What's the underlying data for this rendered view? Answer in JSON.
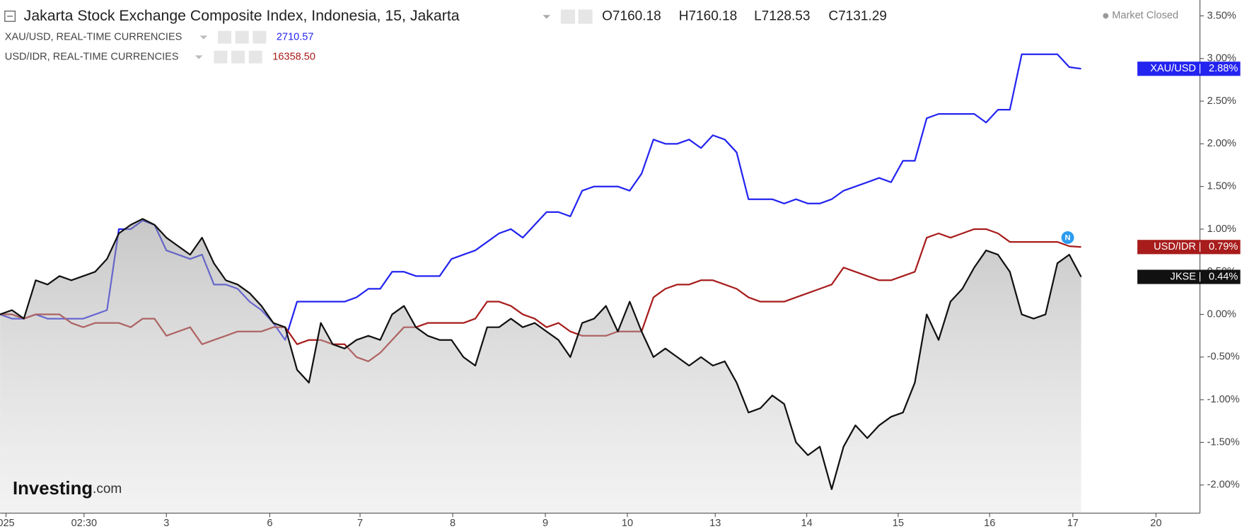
{
  "header": {
    "title": "Jakarta Stock Exchange Composite Index, Indonesia, 15, Jakarta",
    "ohlc": [
      {
        "key": "O",
        "value": "7160.18"
      },
      {
        "key": "H",
        "value": "7160.18"
      },
      {
        "key": "L",
        "value": "7128.53"
      },
      {
        "key": "C",
        "value": "7131.29"
      }
    ],
    "status": "Market Closed"
  },
  "chart_data": {
    "type": "line",
    "x": [
      0,
      1,
      2,
      3,
      4,
      5,
      6,
      7,
      8,
      9,
      10,
      11,
      12,
      13,
      14,
      15,
      16,
      17,
      18,
      19,
      20,
      21,
      22,
      23,
      24,
      25,
      26,
      27,
      28,
      29,
      30,
      31,
      32,
      33,
      34,
      35,
      36,
      37,
      38,
      39,
      40,
      41,
      42,
      43,
      44,
      45,
      46,
      47,
      48,
      49,
      50,
      51,
      52,
      53,
      54,
      55,
      56,
      57,
      58,
      59,
      60,
      61,
      62,
      63,
      64,
      65,
      66,
      67,
      68,
      69,
      70,
      71,
      72,
      73,
      74,
      75,
      76,
      77,
      78,
      79,
      80,
      81,
      82,
      83,
      84,
      85,
      86,
      87,
      88,
      89,
      90,
      91
    ],
    "xlim": [
      0,
      101
    ],
    "xticks": [
      {
        "value": 0.5,
        "label": "025"
      },
      {
        "value": 7.07,
        "label": "02:30"
      },
      {
        "value": 14,
        "label": "3"
      },
      {
        "value": 22.7,
        "label": "6"
      },
      {
        "value": 30.3,
        "label": "7"
      },
      {
        "value": 38.1,
        "label": "8"
      },
      {
        "value": 45.9,
        "label": "9"
      },
      {
        "value": 52.8,
        "label": "10"
      },
      {
        "value": 60.2,
        "label": "13"
      },
      {
        "value": 67.9,
        "label": "14"
      },
      {
        "value": 75.6,
        "label": "15"
      },
      {
        "value": 83.3,
        "label": "16"
      },
      {
        "value": 90.3,
        "label": "17"
      },
      {
        "value": 97.3,
        "label": "20"
      }
    ],
    "ylim": [
      -2.33,
      3.686
    ],
    "yticks": [
      {
        "value": -2.0,
        "label": "-2.00%"
      },
      {
        "value": -1.5,
        "label": "-1.50%"
      },
      {
        "value": -1.0,
        "label": "-1.00%"
      },
      {
        "value": -0.5,
        "label": "-0.50%"
      },
      {
        "value": 0.0,
        "label": "0.00%"
      },
      {
        "value": 0.5,
        "label": "0.50%"
      },
      {
        "value": 1.0,
        "label": "1.00%"
      },
      {
        "value": 1.5,
        "label": "1.50%"
      },
      {
        "value": 2.0,
        "label": "2.00%"
      },
      {
        "value": 2.5,
        "label": "2.50%"
      },
      {
        "value": 3.0,
        "label": "3.00%"
      },
      {
        "value": 3.5,
        "label": "3.50%"
      }
    ],
    "grid": false,
    "series": [
      {
        "name": "JKSE",
        "color": "#111111",
        "area": true,
        "last_label": "0.44%",
        "values": [
          0.0,
          0.05,
          -0.05,
          0.4,
          0.35,
          0.45,
          0.4,
          0.45,
          0.5,
          0.65,
          0.95,
          1.05,
          1.12,
          1.05,
          0.9,
          0.8,
          0.7,
          0.9,
          0.6,
          0.4,
          0.35,
          0.25,
          0.1,
          -0.1,
          -0.15,
          -0.65,
          -0.8,
          -0.1,
          -0.35,
          -0.4,
          -0.3,
          -0.25,
          -0.3,
          0.0,
          0.1,
          -0.15,
          -0.25,
          -0.3,
          -0.3,
          -0.5,
          -0.6,
          -0.15,
          -0.15,
          -0.05,
          -0.15,
          -0.1,
          -0.2,
          -0.3,
          -0.5,
          -0.1,
          -0.05,
          0.1,
          -0.2,
          0.15,
          -0.2,
          -0.5,
          -0.4,
          -0.5,
          -0.6,
          -0.5,
          -0.6,
          -0.55,
          -0.8,
          -1.15,
          -1.1,
          -0.95,
          -1.05,
          -1.5,
          -1.65,
          -1.55,
          -2.05,
          -1.55,
          -1.3,
          -1.45,
          -1.3,
          -1.2,
          -1.15,
          -0.8,
          0.0,
          -0.3,
          0.15,
          0.3,
          0.55,
          0.75,
          0.7,
          0.5,
          0.0,
          -0.05,
          0.0,
          0.6,
          0.7,
          0.44
        ]
      },
      {
        "name": "XAU/USD",
        "legend_label": "XAU/USD, REAL-TIME CURRENCIES",
        "price": "2710.57",
        "color": "#2424f0",
        "area": false,
        "last_label": "2.88%",
        "values": [
          0.0,
          -0.05,
          -0.05,
          0.0,
          -0.05,
          -0.05,
          -0.05,
          -0.05,
          0.0,
          0.05,
          1.0,
          1.0,
          1.1,
          1.05,
          0.75,
          0.7,
          0.65,
          0.7,
          0.35,
          0.35,
          0.3,
          0.15,
          0.05,
          -0.1,
          -0.3,
          0.15,
          0.15,
          0.15,
          0.15,
          0.15,
          0.2,
          0.3,
          0.3,
          0.5,
          0.5,
          0.45,
          0.45,
          0.45,
          0.65,
          0.7,
          0.75,
          0.85,
          0.95,
          1.0,
          0.9,
          1.05,
          1.2,
          1.2,
          1.15,
          1.45,
          1.5,
          1.5,
          1.5,
          1.45,
          1.65,
          2.05,
          2.0,
          2.0,
          2.05,
          1.95,
          2.1,
          2.05,
          1.9,
          1.35,
          1.35,
          1.35,
          1.3,
          1.35,
          1.3,
          1.3,
          1.35,
          1.45,
          1.5,
          1.55,
          1.6,
          1.55,
          1.8,
          1.8,
          2.3,
          2.35,
          2.35,
          2.35,
          2.35,
          2.25,
          2.4,
          2.4,
          3.05,
          3.05,
          3.05,
          3.05,
          2.9,
          2.88
        ]
      },
      {
        "name": "USD/IDR",
        "legend_label": "USD/IDR, REAL-TIME CURRENCIES",
        "price": "16358.50",
        "color": "#a81c1c",
        "area": false,
        "last_label": "0.79%",
        "values": [
          0.0,
          0.0,
          -0.05,
          0.0,
          0.0,
          0.0,
          -0.1,
          -0.15,
          -0.1,
          -0.1,
          -0.1,
          -0.15,
          -0.05,
          -0.05,
          -0.25,
          -0.2,
          -0.15,
          -0.35,
          -0.3,
          -0.25,
          -0.2,
          -0.2,
          -0.2,
          -0.15,
          -0.15,
          -0.35,
          -0.3,
          -0.3,
          -0.35,
          -0.35,
          -0.5,
          -0.55,
          -0.45,
          -0.3,
          -0.15,
          -0.15,
          -0.1,
          -0.1,
          -0.1,
          -0.1,
          -0.05,
          0.15,
          0.15,
          0.1,
          0.0,
          -0.05,
          -0.15,
          -0.1,
          -0.2,
          -0.25,
          -0.25,
          -0.25,
          -0.2,
          -0.2,
          -0.2,
          0.2,
          0.3,
          0.35,
          0.35,
          0.4,
          0.4,
          0.35,
          0.3,
          0.2,
          0.15,
          0.15,
          0.15,
          0.2,
          0.25,
          0.3,
          0.35,
          0.55,
          0.5,
          0.45,
          0.4,
          0.4,
          0.45,
          0.5,
          0.9,
          0.95,
          0.9,
          0.95,
          1.0,
          1.0,
          0.95,
          0.85,
          0.85,
          0.85,
          0.85,
          0.85,
          0.8,
          0.79
        ]
      }
    ]
  },
  "watermark": [
    "Investing",
    ".com"
  ],
  "event_marker": "N"
}
